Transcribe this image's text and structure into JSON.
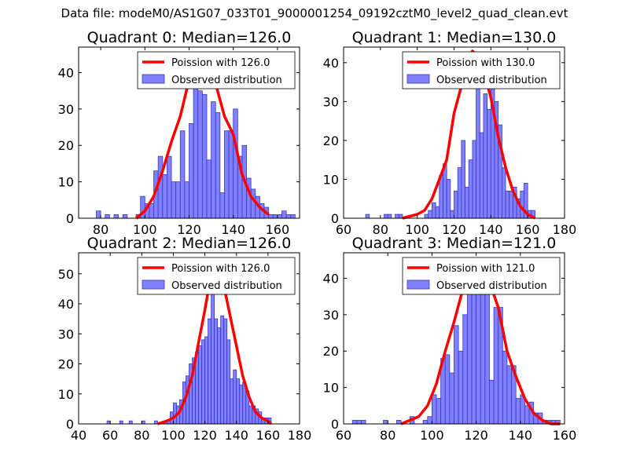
{
  "suptitle": "Data file: modeM0/AS1G07_033T01_9000001254_09192cztM0_level2_quad_clean.evt",
  "colors": {
    "bar_fill": "#8080ff",
    "bar_edge": "#3838c0",
    "poisson_line": "#ff0000",
    "axes": "#000000",
    "background": "#ffffff"
  },
  "chart_data": [
    {
      "type": "bar",
      "title": "Quadrant 0: Median=126.0",
      "median": 126.0,
      "xlim": [
        70,
        170
      ],
      "ylim": [
        0,
        47
      ],
      "xticks": [
        80,
        100,
        120,
        140,
        160
      ],
      "yticks": [
        0,
        10,
        20,
        30,
        40
      ],
      "legend": {
        "placement": "top-right",
        "entries": [
          "Poission with 126.0",
          "Observed distribution"
        ]
      },
      "bin_width": 2,
      "bin_starts": [
        78,
        80,
        82,
        84,
        86,
        88,
        90,
        92,
        94,
        96,
        98,
        100,
        102,
        104,
        106,
        108,
        110,
        112,
        114,
        116,
        118,
        120,
        122,
        124,
        126,
        128,
        130,
        132,
        134,
        136,
        138,
        140,
        142,
        144,
        146,
        148,
        150,
        152,
        154,
        156,
        158,
        160,
        162,
        164,
        166
      ],
      "counts": [
        2,
        0,
        1,
        0,
        1,
        0,
        1,
        0,
        0,
        1,
        6,
        4,
        4,
        13,
        17,
        12,
        17,
        10,
        10,
        24,
        10,
        26,
        37,
        35,
        34,
        16,
        32,
        29,
        7,
        24,
        24,
        30,
        17,
        20,
        11,
        8,
        6,
        4,
        3,
        1,
        1,
        1,
        2,
        1,
        1
      ],
      "poisson": {
        "label": "Poission with 126.0",
        "x": [
          96,
          100,
          104,
          108,
          112,
          116,
          120,
          124,
          126,
          128,
          132,
          136,
          140,
          144,
          148,
          152,
          156
        ],
        "y": [
          0,
          2,
          6,
          13,
          21,
          28,
          38,
          42,
          43,
          42,
          37,
          28,
          23,
          12,
          6,
          3,
          1
        ]
      }
    },
    {
      "type": "bar",
      "title": "Quadrant 1: Median=130.0",
      "median": 130.0,
      "xlim": [
        60,
        180
      ],
      "ylim": [
        0,
        44
      ],
      "xticks": [
        60,
        80,
        100,
        120,
        140,
        160,
        180
      ],
      "yticks": [
        0,
        10,
        20,
        30,
        40
      ],
      "legend": {
        "placement": "top-right",
        "entries": [
          "Poission with 130.0",
          "Observed distribution"
        ]
      },
      "bin_width": 2,
      "bin_starts": [
        72,
        74,
        76,
        78,
        80,
        82,
        84,
        86,
        88,
        90,
        92,
        94,
        96,
        98,
        100,
        102,
        104,
        106,
        108,
        110,
        112,
        114,
        116,
        118,
        120,
        122,
        124,
        126,
        128,
        130,
        132,
        134,
        136,
        138,
        140,
        142,
        144,
        146,
        148,
        150,
        152,
        154,
        156,
        158,
        160,
        162
      ],
      "counts": [
        1,
        0,
        0,
        0,
        0,
        1,
        1,
        0,
        1,
        1,
        0,
        0,
        0,
        0,
        0,
        0,
        1,
        2,
        4,
        3,
        11,
        14,
        10,
        2,
        7,
        13,
        20,
        8,
        15,
        20,
        35,
        22,
        32,
        28,
        37,
        30,
        24,
        13,
        7,
        7,
        8,
        5,
        7,
        9,
        2,
        2
      ],
      "poisson": {
        "label": "Poission with 130.0",
        "x": [
          92,
          100,
          104,
          108,
          112,
          116,
          120,
          124,
          128,
          130,
          132,
          136,
          140,
          144,
          148,
          152,
          156,
          160,
          164
        ],
        "y": [
          0,
          1,
          2,
          5,
          10,
          15,
          27,
          34,
          41,
          43,
          42,
          38,
          31,
          21,
          13,
          7,
          3,
          1,
          0
        ]
      }
    },
    {
      "type": "bar",
      "title": "Quadrant 2: Median=126.0",
      "median": 126.0,
      "xlim": [
        40,
        180
      ],
      "ylim": [
        0,
        57
      ],
      "xticks": [
        40,
        60,
        80,
        100,
        120,
        140,
        160,
        180
      ],
      "yticks": [
        0,
        10,
        20,
        30,
        40,
        50
      ],
      "legend": {
        "placement": "top-right",
        "entries": [
          "Poission with 126.0",
          "Observed distribution"
        ]
      },
      "bin_width": 2,
      "bin_starts": [
        58,
        60,
        62,
        64,
        66,
        68,
        70,
        72,
        74,
        76,
        78,
        80,
        82,
        84,
        86,
        88,
        90,
        92,
        94,
        96,
        98,
        100,
        102,
        104,
        106,
        108,
        110,
        112,
        114,
        116,
        118,
        120,
        122,
        124,
        126,
        128,
        130,
        132,
        134,
        136,
        138,
        140,
        142,
        144,
        146,
        148,
        150,
        152,
        154,
        156,
        158,
        160
      ],
      "counts": [
        1,
        0,
        0,
        0,
        1,
        0,
        0,
        1,
        0,
        0,
        0,
        1,
        0,
        0,
        0,
        1,
        0,
        0,
        1,
        1,
        4,
        7,
        6,
        8,
        14,
        16,
        20,
        22,
        24,
        26,
        28,
        29,
        35,
        51,
        35,
        32,
        36,
        35,
        28,
        15,
        18,
        15,
        13,
        14,
        11,
        6,
        6,
        5,
        4,
        2,
        2,
        2
      ],
      "poisson": {
        "label": "Poission with 126.0",
        "x": [
          90,
          96,
          100,
          104,
          108,
          112,
          116,
          120,
          124,
          126,
          128,
          132,
          136,
          140,
          144,
          148,
          152,
          156,
          160,
          162
        ],
        "y": [
          0,
          1,
          2,
          4,
          9,
          16,
          27,
          38,
          50,
          53,
          52,
          46,
          36,
          26,
          16,
          9,
          4,
          2,
          1,
          0
        ]
      }
    },
    {
      "type": "bar",
      "title": "Quadrant 3: Median=121.0",
      "median": 121.0,
      "xlim": [
        60,
        160
      ],
      "ylim": [
        0,
        47
      ],
      "xticks": [
        60,
        80,
        100,
        120,
        140,
        160
      ],
      "yticks": [
        0,
        10,
        20,
        30,
        40
      ],
      "legend": {
        "placement": "top-right",
        "entries": [
          "Poission with 121.0",
          "Observed distribution"
        ]
      },
      "bin_width": 2,
      "bin_starts": [
        64,
        66,
        68,
        70,
        72,
        74,
        76,
        78,
        80,
        82,
        84,
        86,
        88,
        90,
        92,
        94,
        96,
        98,
        100,
        102,
        104,
        106,
        108,
        110,
        112,
        114,
        116,
        118,
        120,
        122,
        124,
        126,
        128,
        130,
        132,
        134,
        136,
        138,
        140,
        142,
        144,
        146,
        148,
        150,
        152,
        154,
        156
      ],
      "counts": [
        1,
        1,
        1,
        0,
        0,
        0,
        0,
        1,
        0,
        0,
        1,
        0,
        0,
        2,
        0,
        0,
        1,
        2,
        8,
        7,
        18,
        19,
        14,
        27,
        20,
        30,
        38,
        42,
        42,
        40,
        38,
        12,
        32,
        32,
        20,
        16,
        16,
        7,
        8,
        5,
        6,
        3,
        3,
        1,
        1,
        1,
        1
      ],
      "poisson": {
        "label": "Poission with 121.0",
        "x": [
          86,
          90,
          94,
          98,
          102,
          106,
          110,
          114,
          118,
          120,
          122,
          126,
          130,
          134,
          138,
          142,
          146,
          150,
          154,
          158
        ],
        "y": [
          0,
          1,
          2,
          5,
          11,
          20,
          28,
          37,
          43,
          44,
          43,
          39,
          32,
          20,
          13,
          7,
          3,
          1,
          0,
          0
        ]
      }
    }
  ]
}
